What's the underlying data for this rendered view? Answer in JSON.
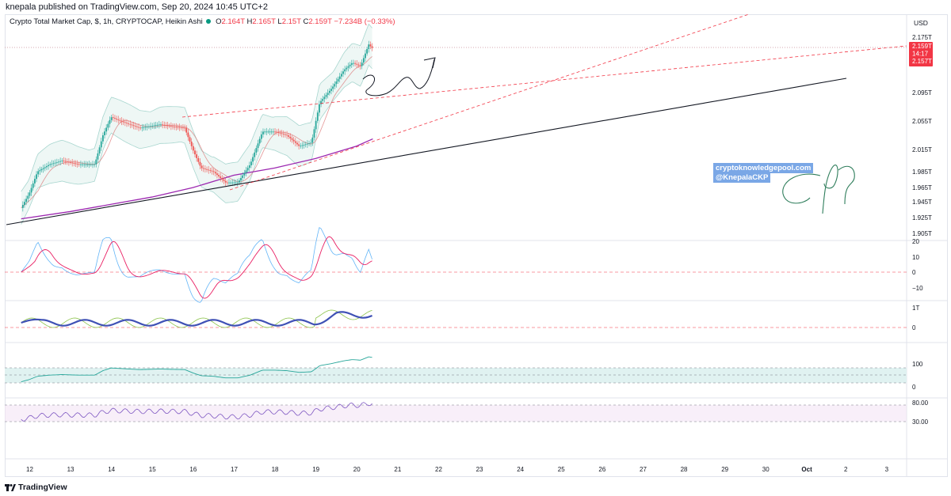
{
  "header": {
    "publisher_line": "knepala published on TradingView.com, Sep 20, 2024 10:45 UTC+2"
  },
  "legend": {
    "symbol": "Crypto Total Market Cap, $, 1h, CRYPTOCAP, Heikin Ashi",
    "o_key": "O",
    "o_val": "2.164T",
    "h_key": "H",
    "h_val": "2.165T",
    "l_key": "L",
    "l_val": "2.15T",
    "c_key": "C",
    "c_val": "2.159T",
    "change": "−7.234B (−0.33%)"
  },
  "price_axis": {
    "currency": "USD",
    "labels": [
      "2.175T",
      "2.095T",
      "2.055T",
      "2.015T",
      "1.985T",
      "1.965T",
      "1.945T",
      "1.925T",
      "1.905T"
    ],
    "last_price_tag": [
      "2.159T",
      "14:17",
      "2.157T"
    ]
  },
  "indicator_axes": {
    "macd": [
      "20",
      "10",
      "0",
      "−10"
    ],
    "osc2": [
      "1T",
      "0"
    ],
    "osc3": [
      "100",
      "0"
    ],
    "rsi": [
      "80.00",
      "30.00"
    ]
  },
  "time_axis": [
    "12",
    "13",
    "14",
    "15",
    "16",
    "17",
    "18",
    "19",
    "20",
    "21",
    "22",
    "23",
    "24",
    "25",
    "26",
    "27",
    "28",
    "29",
    "30",
    "Oct",
    "2",
    "3"
  ],
  "watermark": {
    "line1": "cryptoknowledgepool.com",
    "line2": "@KnepalaCKP"
  },
  "footer": {
    "brand": "TradingView"
  },
  "colors": {
    "up": "#26a69a",
    "down": "#ef5350",
    "sma": "#9c27b0",
    "bb": "#a8d6cf",
    "ema": "#d86a6a",
    "trend": "#131722",
    "fib": "#f23645"
  },
  "chart_data": {
    "type": "candlestick",
    "title": "Crypto Total Market Cap, $, 1h, CRYPTOCAP, Heikin Ashi",
    "ylim": [
      1.905,
      2.175
    ],
    "x_ticks": [
      "12",
      "13",
      "14",
      "15",
      "16",
      "17",
      "18",
      "19",
      "20",
      "21",
      "22",
      "23",
      "24",
      "25",
      "26",
      "27",
      "28",
      "29",
      "30",
      "Oct",
      "2",
      "3"
    ],
    "close_path": [
      {
        "day": 11.8,
        "v": 1.94
      },
      {
        "day": 12.0,
        "v": 1.96
      },
      {
        "day": 12.2,
        "v": 1.99
      },
      {
        "day": 12.5,
        "v": 2.0
      },
      {
        "day": 12.8,
        "v": 2.005
      },
      {
        "day": 13.2,
        "v": 2.0
      },
      {
        "day": 13.6,
        "v": 2.0
      },
      {
        "day": 13.8,
        "v": 2.04
      },
      {
        "day": 14.0,
        "v": 2.065
      },
      {
        "day": 14.3,
        "v": 2.058
      },
      {
        "day": 14.7,
        "v": 2.05
      },
      {
        "day": 15.2,
        "v": 2.055
      },
      {
        "day": 15.5,
        "v": 2.052
      },
      {
        "day": 15.8,
        "v": 2.05
      },
      {
        "day": 16.0,
        "v": 2.02
      },
      {
        "day": 16.2,
        "v": 1.995
      },
      {
        "day": 16.5,
        "v": 1.99
      },
      {
        "day": 16.8,
        "v": 1.975
      },
      {
        "day": 17.1,
        "v": 1.975
      },
      {
        "day": 17.4,
        "v": 2.0
      },
      {
        "day": 17.7,
        "v": 2.045
      },
      {
        "day": 18.0,
        "v": 2.045
      },
      {
        "day": 18.3,
        "v": 2.04
      },
      {
        "day": 18.6,
        "v": 2.025
      },
      {
        "day": 18.9,
        "v": 2.03
      },
      {
        "day": 19.1,
        "v": 2.085
      },
      {
        "day": 19.4,
        "v": 2.105
      },
      {
        "day": 19.7,
        "v": 2.13
      },
      {
        "day": 19.9,
        "v": 2.14
      },
      {
        "day": 20.1,
        "v": 2.135
      },
      {
        "day": 20.3,
        "v": 2.165
      },
      {
        "day": 20.4,
        "v": 2.159
      }
    ],
    "sma": [
      {
        "day": 11.8,
        "v": 1.925
      },
      {
        "day": 13.0,
        "v": 1.935
      },
      {
        "day": 14.0,
        "v": 1.945
      },
      {
        "day": 15.0,
        "v": 1.955
      },
      {
        "day": 16.0,
        "v": 1.968
      },
      {
        "day": 17.0,
        "v": 1.985
      },
      {
        "day": 18.0,
        "v": 1.995
      },
      {
        "day": 19.0,
        "v": 2.008
      },
      {
        "day": 20.0,
        "v": 2.025
      },
      {
        "day": 20.4,
        "v": 2.035
      }
    ],
    "last": {
      "o": 2.164,
      "h": 2.165,
      "l": 2.15,
      "c": 2.159
    }
  }
}
